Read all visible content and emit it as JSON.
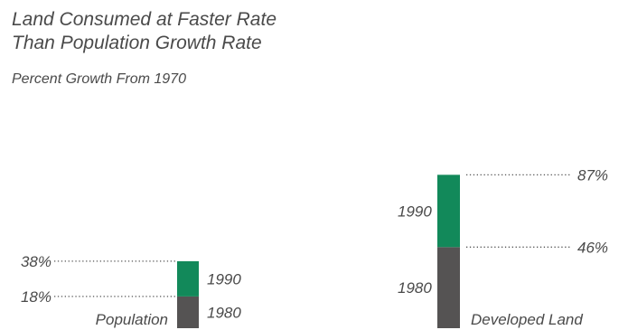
{
  "chart_data": {
    "type": "bar",
    "title_lines": [
      "Land Consumed at Faster Rate",
      "Than Population Growth Rate"
    ],
    "subtitle": "Percent Growth From 1970",
    "colors": {
      "1980": "#555353",
      "1990": "#12895a"
    },
    "bars": [
      {
        "category": "Population",
        "segments": [
          {
            "label": "1980",
            "value": 18,
            "value_label": "18%"
          },
          {
            "label": "1990",
            "value": 38,
            "value_label": "38%"
          }
        ]
      },
      {
        "category": "Developed Land",
        "segments": [
          {
            "label": "1980",
            "value": 46,
            "value_label": "46%"
          },
          {
            "label": "1990",
            "value": 87,
            "value_label": "87%"
          }
        ]
      }
    ]
  }
}
